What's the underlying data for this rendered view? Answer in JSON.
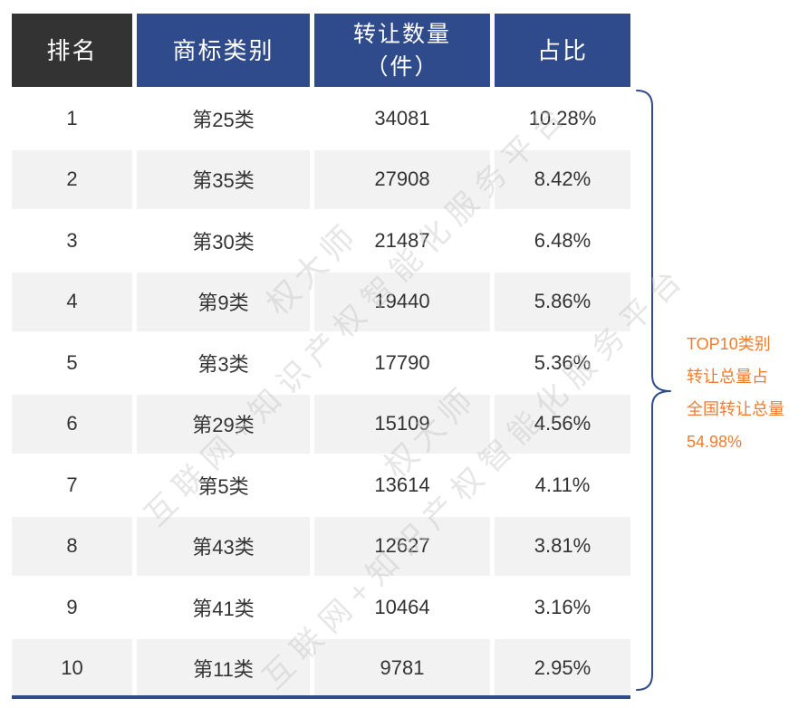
{
  "chart_data": {
    "type": "table",
    "columns": [
      "排名",
      "商标类别",
      "转让数量\n（件）",
      "占比"
    ],
    "rows": [
      {
        "rank": 1,
        "category": "第25类",
        "count": 34081,
        "share": "10.28%"
      },
      {
        "rank": 2,
        "category": "第35类",
        "count": 27908,
        "share": "8.42%"
      },
      {
        "rank": 3,
        "category": "第30类",
        "count": 21487,
        "share": "6.48%"
      },
      {
        "rank": 4,
        "category": "第9类",
        "count": 19440,
        "share": "5.86%"
      },
      {
        "rank": 5,
        "category": "第3类",
        "count": 17790,
        "share": "5.36%"
      },
      {
        "rank": 6,
        "category": "第29类",
        "count": 15109,
        "share": "4.56%"
      },
      {
        "rank": 7,
        "category": "第5类",
        "count": 13614,
        "share": "4.11%"
      },
      {
        "rank": 8,
        "category": "第43类",
        "count": 12627,
        "share": "3.81%"
      },
      {
        "rank": 9,
        "category": "第41类",
        "count": 10464,
        "share": "3.16%"
      },
      {
        "rank": 10,
        "category": "第11类",
        "count": 9781,
        "share": "2.95%"
      }
    ],
    "annotation": [
      "TOP10类别",
      "转让总量占",
      "全国转让总量",
      "54.98%"
    ]
  },
  "watermark": {
    "brand": "权大师",
    "slogan": "互联网+知识产权智能化服务平台"
  },
  "colors": {
    "rank_header_bg": "#333333",
    "header_bg": "#2F4B8C",
    "header_text": "#FFFFFF",
    "stripe_bg": "#F2F2F2",
    "body_text": "#333333",
    "brace": "#2F4B8C",
    "annotation": "#ED7D31",
    "watermark": "#C8C8C8"
  }
}
